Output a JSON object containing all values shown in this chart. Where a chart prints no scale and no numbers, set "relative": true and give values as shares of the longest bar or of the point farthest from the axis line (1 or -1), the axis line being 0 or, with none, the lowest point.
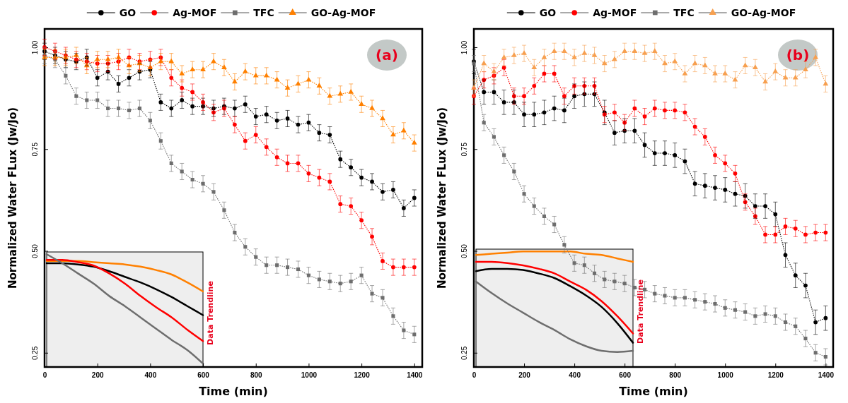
{
  "chart_data": [
    {
      "type": "line",
      "xlabel": "Time (min)",
      "ylabel": "Normalized Water FLux (Jw/Jo)",
      "legend": "top",
      "line_style": "dotted",
      "annotations": [
        "(a)"
      ],
      "xlim": [
        0,
        1430
      ],
      "xticks": [
        0,
        200,
        400,
        600,
        800,
        1000,
        1200,
        1400
      ],
      "ylim": [
        0.215,
        1.045
      ],
      "yticks": [
        {
          "value": 0.25,
          "label": "0.25"
        },
        {
          "value": 0.5,
          "label": "0.50"
        },
        {
          "value": 0.75,
          "label": "0.75"
        },
        {
          "value": 1,
          "label": "1.00"
        }
      ],
      "x": [
        0,
        40,
        80,
        120,
        160,
        200,
        240,
        280,
        320,
        360,
        400,
        440,
        480,
        520,
        560,
        600,
        640,
        680,
        720,
        760,
        800,
        840,
        880,
        920,
        960,
        1000,
        1040,
        1080,
        1120,
        1160,
        1200,
        1240,
        1280,
        1320,
        1360,
        1400
      ],
      "series": [
        {
          "name": "GO",
          "color": "#000000",
          "marker": "circle",
          "values": [
            0.99,
            0.98,
            0.97,
            0.965,
            0.975,
            0.925,
            0.94,
            0.91,
            0.925,
            0.94,
            0.945,
            0.865,
            0.85,
            0.87,
            0.855,
            0.855,
            0.85,
            0.855,
            0.85,
            0.86,
            0.83,
            0.835,
            0.82,
            0.825,
            0.81,
            0.815,
            0.79,
            0.785,
            0.725,
            0.705,
            0.68,
            0.67,
            0.645,
            0.65,
            0.605,
            0.63
          ],
          "errors": [
            0.02,
            0.02,
            0.02,
            0.02,
            0.02,
            0.02,
            0.02,
            0.02,
            0.02,
            0.02,
            0.02,
            0.02,
            0.02,
            0.02,
            0.02,
            0.02,
            0.02,
            0.02,
            0.02,
            0.02,
            0.02,
            0.02,
            0.02,
            0.02,
            0.02,
            0.02,
            0.02,
            0.02,
            0.02,
            0.02,
            0.02,
            0.02,
            0.02,
            0.02,
            0.02,
            0.02
          ]
        },
        {
          "name": "Ag-MOF",
          "color": "#ff0000",
          "marker": "circle",
          "values": [
            1.0,
            0.99,
            0.98,
            0.97,
            0.965,
            0.96,
            0.96,
            0.965,
            0.975,
            0.965,
            0.97,
            0.975,
            0.925,
            0.9,
            0.89,
            0.865,
            0.84,
            0.85,
            0.81,
            0.77,
            0.785,
            0.755,
            0.73,
            0.715,
            0.715,
            0.69,
            0.68,
            0.67,
            0.615,
            0.61,
            0.575,
            0.535,
            0.475,
            0.46,
            0.46,
            0.46
          ],
          "errors": [
            0.02,
            0.02,
            0.02,
            0.02,
            0.02,
            0.02,
            0.02,
            0.02,
            0.02,
            0.02,
            0.02,
            0.02,
            0.02,
            0.02,
            0.02,
            0.02,
            0.02,
            0.02,
            0.02,
            0.02,
            0.02,
            0.02,
            0.02,
            0.02,
            0.02,
            0.02,
            0.02,
            0.02,
            0.02,
            0.02,
            0.02,
            0.02,
            0.02,
            0.02,
            0.02,
            0.02
          ]
        },
        {
          "name": "TFC",
          "color": "#6e6e6e",
          "marker": "square",
          "values": [
            0.98,
            0.97,
            0.93,
            0.88,
            0.87,
            0.87,
            0.85,
            0.85,
            0.845,
            0.85,
            0.82,
            0.77,
            0.715,
            0.695,
            0.675,
            0.665,
            0.645,
            0.6,
            0.545,
            0.51,
            0.485,
            0.465,
            0.465,
            0.46,
            0.455,
            0.44,
            0.43,
            0.425,
            0.42,
            0.425,
            0.44,
            0.395,
            0.385,
            0.34,
            0.305,
            0.295
          ],
          "errors": [
            0.02,
            0.02,
            0.02,
            0.02,
            0.02,
            0.02,
            0.02,
            0.02,
            0.02,
            0.02,
            0.02,
            0.02,
            0.02,
            0.02,
            0.02,
            0.02,
            0.02,
            0.02,
            0.02,
            0.02,
            0.02,
            0.02,
            0.02,
            0.02,
            0.02,
            0.02,
            0.02,
            0.02,
            0.02,
            0.02,
            0.02,
            0.02,
            0.02,
            0.02,
            0.02,
            0.02
          ]
        },
        {
          "name": "GO-Ag-MOF",
          "color": "#ff8000",
          "marker": "triangle",
          "values": [
            0.975,
            0.975,
            0.975,
            0.98,
            0.955,
            0.97,
            0.97,
            0.975,
            0.955,
            0.96,
            0.95,
            0.965,
            0.965,
            0.935,
            0.945,
            0.945,
            0.965,
            0.95,
            0.915,
            0.94,
            0.93,
            0.93,
            0.92,
            0.9,
            0.91,
            0.92,
            0.905,
            0.88,
            0.885,
            0.89,
            0.86,
            0.85,
            0.825,
            0.785,
            0.795,
            0.765
          ],
          "errors": [
            0.02,
            0.02,
            0.02,
            0.02,
            0.02,
            0.02,
            0.02,
            0.02,
            0.02,
            0.02,
            0.02,
            0.02,
            0.02,
            0.02,
            0.02,
            0.02,
            0.02,
            0.02,
            0.02,
            0.02,
            0.02,
            0.02,
            0.02,
            0.02,
            0.02,
            0.02,
            0.02,
            0.02,
            0.02,
            0.02,
            0.02,
            0.02,
            0.02,
            0.02,
            0.02,
            0.02
          ]
        }
      ]
    },
    {
      "type": "line",
      "relative": true,
      "annotations": [
        "Data Trendline"
      ],
      "categories": [
        null,
        null,
        null,
        null,
        null,
        null,
        null,
        null,
        null,
        null,
        null
      ],
      "series": [
        {
          "color": "#ff8000",
          "values": [
            0.94,
            0.94,
            0.94,
            0.93,
            0.92,
            0.91,
            0.89,
            0.86,
            0.82,
            0.75,
            0.67
          ]
        },
        {
          "color": "#000000",
          "values": [
            0.92,
            0.92,
            0.91,
            0.89,
            0.85,
            0.8,
            0.75,
            0.69,
            0.62,
            0.54,
            0.46
          ]
        },
        {
          "color": "#ff0000",
          "values": [
            0.95,
            0.95,
            0.93,
            0.9,
            0.83,
            0.74,
            0.63,
            0.53,
            0.44,
            0.33,
            0.23
          ]
        },
        {
          "color": "#6e6e6e",
          "values": [
            1,
            0.92,
            0.83,
            0.74,
            0.63,
            0.54,
            0.44,
            0.34,
            0.24,
            0.15,
            0.03
          ]
        }
      ]
    },
    {
      "type": "line",
      "xlabel": "Time (min)",
      "ylabel": "Normalized Water FLux (Jw/Jo)",
      "legend": "top",
      "line_style": "dotted",
      "annotations": [
        "(b)"
      ],
      "xlim": [
        0,
        1430
      ],
      "xticks": [
        0,
        200,
        400,
        600,
        800,
        1000,
        1200,
        1400
      ],
      "ylim": [
        0.215,
        1.045
      ],
      "yticks": [
        {
          "value": 0.25,
          "label": "0.25"
        },
        {
          "value": 0.5,
          "label": "0.50"
        },
        {
          "value": 0.75,
          "label": "0.75"
        },
        {
          "value": 1,
          "label": "1.00"
        }
      ],
      "x": [
        0,
        40,
        80,
        120,
        160,
        200,
        240,
        280,
        320,
        360,
        400,
        440,
        480,
        520,
        560,
        600,
        640,
        680,
        720,
        760,
        800,
        840,
        880,
        920,
        960,
        1000,
        1040,
        1080,
        1120,
        1160,
        1200,
        1240,
        1280,
        1320,
        1360,
        1400
      ],
      "series": [
        {
          "name": "GO",
          "color": "#000000",
          "marker": "circle",
          "values": [
            0.965,
            0.89,
            0.89,
            0.865,
            0.865,
            0.835,
            0.835,
            0.84,
            0.85,
            0.845,
            0.88,
            0.885,
            0.885,
            0.84,
            0.79,
            0.795,
            0.795,
            0.76,
            0.74,
            0.74,
            0.735,
            0.72,
            0.665,
            0.66,
            0.655,
            0.65,
            0.64,
            0.635,
            0.61,
            0.61,
            0.59,
            0.49,
            0.44,
            0.415,
            0.325,
            0.335
          ],
          "errors": [
            0.03,
            0.03,
            0.03,
            0.03,
            0.03,
            0.03,
            0.03,
            0.03,
            0.03,
            0.03,
            0.03,
            0.03,
            0.03,
            0.03,
            0.03,
            0.03,
            0.03,
            0.03,
            0.03,
            0.03,
            0.03,
            0.03,
            0.03,
            0.03,
            0.03,
            0.03,
            0.03,
            0.03,
            0.03,
            0.03,
            0.03,
            0.03,
            0.03,
            0.03,
            0.03,
            0.03
          ]
        },
        {
          "name": "Ag-MOF",
          "color": "#ff0000",
          "marker": "circle",
          "values": [
            0.88,
            0.92,
            0.93,
            0.95,
            0.88,
            0.88,
            0.905,
            0.935,
            0.935,
            0.88,
            0.905,
            0.905,
            0.905,
            0.835,
            0.84,
            0.815,
            0.85,
            0.83,
            0.85,
            0.845,
            0.845,
            0.84,
            0.805,
            0.78,
            0.735,
            0.715,
            0.69,
            0.62,
            0.585,
            0.54,
            0.54,
            0.56,
            0.555,
            0.54,
            0.545,
            0.545
          ],
          "errors": [
            0.02,
            0.02,
            0.02,
            0.02,
            0.02,
            0.02,
            0.02,
            0.02,
            0.02,
            0.02,
            0.02,
            0.02,
            0.02,
            0.02,
            0.02,
            0.02,
            0.02,
            0.02,
            0.02,
            0.02,
            0.02,
            0.02,
            0.02,
            0.02,
            0.02,
            0.02,
            0.02,
            0.02,
            0.02,
            0.02,
            0.02,
            0.02,
            0.02,
            0.02,
            0.02,
            0.02
          ]
        },
        {
          "name": "TFC",
          "color": "#6e6e6e",
          "marker": "square",
          "values": [
            0.96,
            0.815,
            0.78,
            0.735,
            0.695,
            0.64,
            0.61,
            0.585,
            0.565,
            0.515,
            0.47,
            0.465,
            0.445,
            0.43,
            0.425,
            0.42,
            0.41,
            0.405,
            0.395,
            0.39,
            0.385,
            0.385,
            0.38,
            0.375,
            0.37,
            0.36,
            0.355,
            0.35,
            0.34,
            0.345,
            0.34,
            0.325,
            0.315,
            0.285,
            0.25,
            0.24
          ],
          "errors": [
            0.02,
            0.02,
            0.02,
            0.02,
            0.02,
            0.02,
            0.02,
            0.02,
            0.02,
            0.02,
            0.02,
            0.02,
            0.02,
            0.02,
            0.02,
            0.02,
            0.02,
            0.02,
            0.02,
            0.02,
            0.02,
            0.02,
            0.02,
            0.02,
            0.02,
            0.02,
            0.02,
            0.02,
            0.02,
            0.02,
            0.02,
            0.02,
            0.02,
            0.02,
            0.02,
            0.02
          ]
        },
        {
          "name": "GO-Ag-MOF",
          "color": "#f7a050",
          "marker": "triangle",
          "values": [
            0.9,
            0.96,
            0.94,
            0.975,
            0.98,
            0.985,
            0.95,
            0.975,
            0.99,
            0.99,
            0.975,
            0.985,
            0.98,
            0.96,
            0.97,
            0.99,
            0.99,
            0.985,
            0.99,
            0.96,
            0.965,
            0.935,
            0.96,
            0.955,
            0.935,
            0.935,
            0.92,
            0.955,
            0.95,
            0.915,
            0.94,
            0.925,
            0.925,
            0.945,
            0.975,
            0.91
          ],
          "errors": [
            0.02,
            0.02,
            0.02,
            0.02,
            0.02,
            0.02,
            0.02,
            0.02,
            0.02,
            0.02,
            0.02,
            0.02,
            0.02,
            0.02,
            0.02,
            0.02,
            0.02,
            0.02,
            0.02,
            0.02,
            0.02,
            0.02,
            0.02,
            0.02,
            0.02,
            0.02,
            0.02,
            0.02,
            0.02,
            0.02,
            0.02,
            0.02,
            0.02,
            0.02,
            0.02,
            0.02
          ]
        }
      ]
    },
    {
      "type": "line",
      "relative": true,
      "annotations": [
        "Data Trendline"
      ],
      "categories": [
        null,
        null,
        null,
        null,
        null,
        null,
        null,
        null,
        null,
        null,
        null
      ],
      "series": [
        {
          "color": "#ff8000",
          "values": [
            0.97,
            0.98,
            0.99,
            1,
            1,
            1,
            1,
            0.98,
            0.97,
            0.94,
            0.91
          ]
        },
        {
          "color": "#ff0000",
          "values": [
            0.91,
            0.91,
            0.9,
            0.88,
            0.85,
            0.81,
            0.74,
            0.67,
            0.57,
            0.44,
            0.29
          ]
        },
        {
          "color": "#000000",
          "values": [
            0.83,
            0.85,
            0.85,
            0.84,
            0.81,
            0.77,
            0.7,
            0.62,
            0.52,
            0.38,
            0.21
          ]
        },
        {
          "color": "#6e6e6e",
          "values": [
            0.74,
            0.64,
            0.55,
            0.47,
            0.39,
            0.32,
            0.24,
            0.18,
            0.14,
            0.13,
            0.14
          ]
        }
      ]
    }
  ]
}
